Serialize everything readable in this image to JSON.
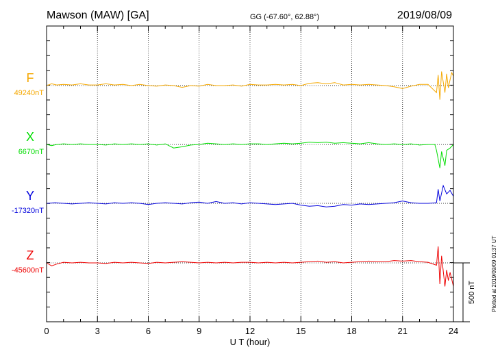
{
  "header": {
    "station": "Mawson (MAW)  [GA]",
    "coords": "GG (-67.60°,  62.88°)",
    "date": "2019/08/09"
  },
  "footer": {
    "plotted": "Plotted at 2019/09/09 01:37 UT",
    "scale_label": "500 nT"
  },
  "chart_data": {
    "type": "line",
    "xlabel": "U T (hour)",
    "xlim": [
      0,
      24
    ],
    "x_ticks": [
      0,
      3,
      6,
      9,
      12,
      15,
      18,
      21,
      24
    ],
    "x_tick_labels": [
      "0",
      "3",
      "6",
      "9",
      "12",
      "15",
      "18",
      "21",
      "24"
    ],
    "grid": "vertical dotted every 3 hours",
    "scale_bar_nT": 500,
    "series": [
      {
        "name": "F",
        "baseline_label": "49240nT",
        "color": "#f5a800",
        "points": [
          [
            0,
            0
          ],
          [
            0.3,
            15
          ],
          [
            0.6,
            5
          ],
          [
            1,
            10
          ],
          [
            1.5,
            5
          ],
          [
            2,
            15
          ],
          [
            2.5,
            5
          ],
          [
            3,
            5
          ],
          [
            3.5,
            15
          ],
          [
            4,
            5
          ],
          [
            4.5,
            10
          ],
          [
            5,
            0
          ],
          [
            5.5,
            10
          ],
          [
            6,
            0
          ],
          [
            6.5,
            -5
          ],
          [
            7,
            5
          ],
          [
            7.5,
            0
          ],
          [
            8,
            -15
          ],
          [
            8.5,
            0
          ],
          [
            9,
            -5
          ],
          [
            9.5,
            10
          ],
          [
            10,
            0
          ],
          [
            10.5,
            0
          ],
          [
            11,
            5
          ],
          [
            11.5,
            -5
          ],
          [
            12,
            10
          ],
          [
            12.5,
            5
          ],
          [
            13,
            5
          ],
          [
            13.5,
            10
          ],
          [
            14,
            5
          ],
          [
            14.5,
            10
          ],
          [
            15,
            0
          ],
          [
            15.5,
            20
          ],
          [
            16,
            25
          ],
          [
            16.5,
            15
          ],
          [
            17,
            25
          ],
          [
            17.5,
            5
          ],
          [
            18,
            10
          ],
          [
            18.5,
            5
          ],
          [
            19,
            10
          ],
          [
            19.5,
            5
          ],
          [
            20,
            0
          ],
          [
            20.5,
            -10
          ],
          [
            21,
            -25
          ],
          [
            21.5,
            -5
          ],
          [
            22,
            10
          ],
          [
            22.5,
            10
          ],
          [
            23,
            -60
          ],
          [
            23.1,
            90
          ],
          [
            23.2,
            -120
          ],
          [
            23.3,
            120
          ],
          [
            23.5,
            -60
          ],
          [
            23.6,
            100
          ],
          [
            23.7,
            -20
          ],
          [
            23.8,
            50
          ],
          [
            23.9,
            110
          ],
          [
            24,
            80
          ]
        ]
      },
      {
        "name": "X",
        "baseline_label": "6670nT",
        "color": "#00dd00",
        "points": [
          [
            0,
            0
          ],
          [
            0.3,
            -10
          ],
          [
            0.6,
            0
          ],
          [
            1,
            5
          ],
          [
            1.5,
            0
          ],
          [
            2,
            5
          ],
          [
            2.5,
            0
          ],
          [
            3,
            0
          ],
          [
            3.5,
            -5
          ],
          [
            4,
            5
          ],
          [
            4.5,
            0
          ],
          [
            5,
            5
          ],
          [
            5.5,
            0
          ],
          [
            6,
            5
          ],
          [
            6.5,
            -5
          ],
          [
            7,
            5
          ],
          [
            7.5,
            -30
          ],
          [
            8,
            -20
          ],
          [
            8.5,
            -5
          ],
          [
            9,
            0
          ],
          [
            9.5,
            10
          ],
          [
            10,
            5
          ],
          [
            10.5,
            0
          ],
          [
            11,
            5
          ],
          [
            11.5,
            0
          ],
          [
            12,
            5
          ],
          [
            12.5,
            5
          ],
          [
            13,
            0
          ],
          [
            13.5,
            5
          ],
          [
            14,
            10
          ],
          [
            14.5,
            5
          ],
          [
            15,
            10
          ],
          [
            15.5,
            20
          ],
          [
            16,
            15
          ],
          [
            16.5,
            20
          ],
          [
            17,
            10
          ],
          [
            17.5,
            15
          ],
          [
            18,
            10
          ],
          [
            18.5,
            5
          ],
          [
            19,
            15
          ],
          [
            19.5,
            5
          ],
          [
            20,
            0
          ],
          [
            20.5,
            5
          ],
          [
            21,
            0
          ],
          [
            21.5,
            5
          ],
          [
            22,
            -5
          ],
          [
            22.5,
            0
          ],
          [
            22.9,
            0
          ],
          [
            23,
            -50
          ],
          [
            23.2,
            -200
          ],
          [
            23.3,
            -60
          ],
          [
            23.5,
            -180
          ],
          [
            23.6,
            -50
          ],
          [
            23.8,
            -30
          ],
          [
            24,
            0
          ]
        ]
      },
      {
        "name": "Y",
        "baseline_label": "-17320nT",
        "color": "#0000dd",
        "points": [
          [
            0,
            0
          ],
          [
            0.5,
            5
          ],
          [
            1,
            0
          ],
          [
            1.5,
            -5
          ],
          [
            2,
            0
          ],
          [
            2.5,
            5
          ],
          [
            3,
            0
          ],
          [
            3.5,
            -5
          ],
          [
            4,
            5
          ],
          [
            4.5,
            0
          ],
          [
            5,
            5
          ],
          [
            5.5,
            0
          ],
          [
            6,
            -10
          ],
          [
            6.5,
            0
          ],
          [
            7,
            5
          ],
          [
            7.5,
            0
          ],
          [
            8,
            -5
          ],
          [
            8.5,
            5
          ],
          [
            9,
            10
          ],
          [
            9.5,
            0
          ],
          [
            10,
            15
          ],
          [
            10.5,
            0
          ],
          [
            11,
            5
          ],
          [
            11.5,
            -5
          ],
          [
            12,
            5
          ],
          [
            12.5,
            0
          ],
          [
            13,
            -5
          ],
          [
            13.5,
            -10
          ],
          [
            14,
            -5
          ],
          [
            14.5,
            0
          ],
          [
            15,
            -15
          ],
          [
            15.5,
            -25
          ],
          [
            16,
            -20
          ],
          [
            16.5,
            -30
          ],
          [
            17,
            -25
          ],
          [
            17.5,
            -10
          ],
          [
            18,
            -15
          ],
          [
            18.5,
            -5
          ],
          [
            19,
            -10
          ],
          [
            19.5,
            -5
          ],
          [
            20,
            0
          ],
          [
            20.5,
            5
          ],
          [
            21,
            20
          ],
          [
            21.5,
            5
          ],
          [
            22,
            0
          ],
          [
            22.5,
            0
          ],
          [
            23,
            5
          ],
          [
            23.1,
            120
          ],
          [
            23.2,
            20
          ],
          [
            23.4,
            150
          ],
          [
            23.6,
            80
          ],
          [
            23.8,
            110
          ],
          [
            24,
            60
          ]
        ]
      },
      {
        "name": "Z",
        "baseline_label": "-45600nT",
        "color": "#ee0000",
        "points": [
          [
            0,
            0
          ],
          [
            0.3,
            -25
          ],
          [
            0.6,
            -10
          ],
          [
            1,
            5
          ],
          [
            1.5,
            0
          ],
          [
            2,
            5
          ],
          [
            2.5,
            0
          ],
          [
            3,
            0
          ],
          [
            3.5,
            -5
          ],
          [
            4,
            5
          ],
          [
            4.5,
            0
          ],
          [
            5,
            5
          ],
          [
            5.5,
            0
          ],
          [
            6,
            -5
          ],
          [
            6.5,
            5
          ],
          [
            7,
            0
          ],
          [
            7.5,
            5
          ],
          [
            8,
            10
          ],
          [
            8.5,
            5
          ],
          [
            9,
            0
          ],
          [
            9.5,
            5
          ],
          [
            10,
            0
          ],
          [
            10.5,
            5
          ],
          [
            11,
            0
          ],
          [
            11.5,
            5
          ],
          [
            12,
            5
          ],
          [
            12.5,
            0
          ],
          [
            13,
            5
          ],
          [
            13.5,
            0
          ],
          [
            14,
            5
          ],
          [
            14.5,
            0
          ],
          [
            15,
            5
          ],
          [
            16,
            15
          ],
          [
            16.5,
            5
          ],
          [
            17,
            10
          ],
          [
            17.5,
            0
          ],
          [
            18,
            5
          ],
          [
            18.5,
            10
          ],
          [
            19,
            15
          ],
          [
            19.5,
            10
          ],
          [
            20,
            10
          ],
          [
            20.5,
            20
          ],
          [
            21,
            15
          ],
          [
            21.5,
            20
          ],
          [
            22,
            10
          ],
          [
            22.5,
            5
          ],
          [
            23,
            -20
          ],
          [
            23.1,
            140
          ],
          [
            23.2,
            -180
          ],
          [
            23.3,
            60
          ],
          [
            23.5,
            -200
          ],
          [
            23.6,
            -60
          ],
          [
            23.7,
            -150
          ],
          [
            23.8,
            -80
          ],
          [
            24,
            -200
          ]
        ]
      }
    ]
  }
}
